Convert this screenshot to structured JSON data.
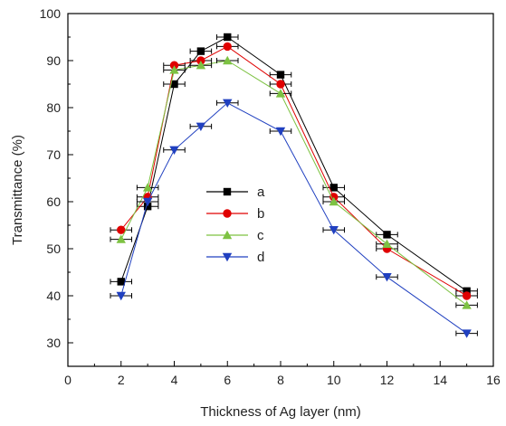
{
  "chart_data": {
    "type": "line",
    "title": "",
    "xlabel": "Thickness of Ag layer (nm)",
    "ylabel": "Transmittance (%)",
    "xlim": [
      0,
      16
    ],
    "ylim": [
      25,
      100
    ],
    "x_ticks": [
      0,
      2,
      4,
      6,
      8,
      10,
      12,
      14,
      16
    ],
    "y_ticks": [
      30,
      40,
      50,
      60,
      70,
      80,
      90,
      100
    ],
    "x_error": 0.4,
    "grid": false,
    "legend_position": "center",
    "x": [
      2,
      3,
      4,
      5,
      6,
      8,
      10,
      12,
      15
    ],
    "series": [
      {
        "name": "a",
        "color": "#000000",
        "marker": "square",
        "values": [
          43,
          59,
          85,
          92,
          95,
          87,
          63,
          53,
          41
        ]
      },
      {
        "name": "b",
        "color": "#e00000",
        "marker": "circle",
        "values": [
          54,
          61,
          89,
          90,
          93,
          85,
          61,
          50,
          40
        ]
      },
      {
        "name": "c",
        "color": "#7dc242",
        "marker": "triangle-up",
        "values": [
          52,
          63,
          88,
          89,
          90,
          83,
          60,
          51,
          38
        ]
      },
      {
        "name": "d",
        "color": "#2040c0",
        "marker": "triangle-down",
        "values": [
          40,
          60,
          71,
          76,
          81,
          75,
          54,
          44,
          32
        ]
      }
    ]
  }
}
